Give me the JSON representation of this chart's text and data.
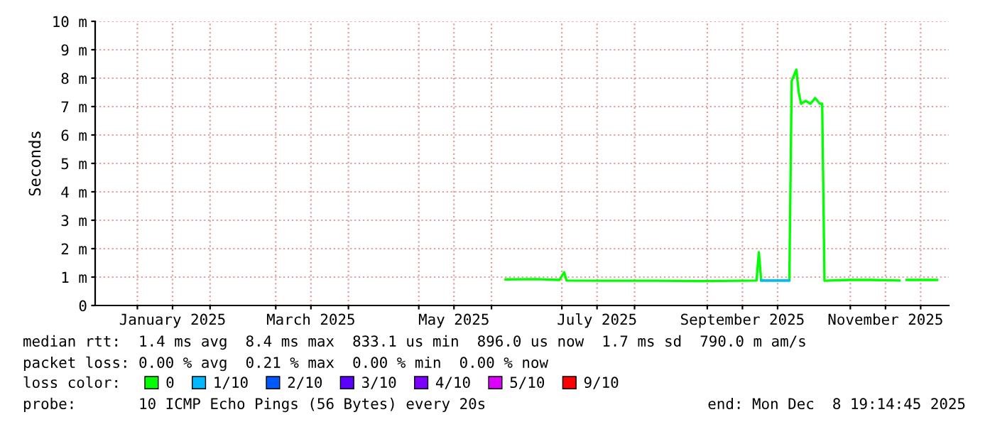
{
  "chart_data": {
    "type": "line",
    "ylabel": "Seconds",
    "xlim": [
      "2024-12-14",
      "2025-12-13"
    ],
    "xticks": [
      {
        "value": "2025-01-01",
        "label": null
      },
      {
        "value": "2025-01-16",
        "label": "January 2025"
      },
      {
        "value": "2025-02-01",
        "label": null
      },
      {
        "value": "2025-03-01",
        "label": null
      },
      {
        "value": "2025-03-16",
        "label": "March 2025"
      },
      {
        "value": "2025-04-01",
        "label": null
      },
      {
        "value": "2025-05-01",
        "label": null
      },
      {
        "value": "2025-05-16",
        "label": "May 2025"
      },
      {
        "value": "2025-06-01",
        "label": null
      },
      {
        "value": "2025-07-01",
        "label": null
      },
      {
        "value": "2025-07-16",
        "label": "July 2025"
      },
      {
        "value": "2025-08-01",
        "label": null
      },
      {
        "value": "2025-09-01",
        "label": null
      },
      {
        "value": "2025-09-16",
        "label": "September 2025"
      },
      {
        "value": "2025-10-01",
        "label": null
      },
      {
        "value": "2025-11-01",
        "label": null
      },
      {
        "value": "2025-11-16",
        "label": "November 2025"
      },
      {
        "value": "2025-12-01",
        "label": null
      }
    ],
    "ylim": [
      0,
      10
    ],
    "yticks": [
      0,
      {
        "value": 1,
        "label": "1 m"
      },
      {
        "value": 2,
        "label": "2 m"
      },
      {
        "value": 3,
        "label": "3 m"
      },
      {
        "value": 4,
        "label": "4 m"
      },
      {
        "value": 5,
        "label": "5 m"
      },
      {
        "value": 6,
        "label": "6 m"
      },
      {
        "value": 7,
        "label": "7 m"
      },
      {
        "value": 8,
        "label": "8 m"
      },
      {
        "value": 9,
        "label": "9 m"
      },
      {
        "value": 10,
        "label": "10 m"
      }
    ],
    "grid": true,
    "legend": "bottom",
    "legend_title": "loss color:",
    "series": [
      {
        "name": "0",
        "color": "#00ff00",
        "x": [
          "2025-06-07",
          "2025-06-20",
          "2025-06-30",
          "2025-07-02",
          "2025-07-03",
          "2025-07-20",
          "2025-08-10",
          "2025-08-30",
          "2025-09-15",
          "2025-09-22",
          "2025-09-23",
          "2025-09-24",
          "2025-10-06",
          "2025-10-07",
          "2025-10-08",
          "2025-10-09",
          "2025-10-10",
          "2025-10-11",
          "2025-10-13",
          "2025-10-15",
          "2025-10-17",
          "2025-10-19",
          "2025-10-20",
          "2025-10-21",
          "2025-11-01",
          "2025-11-10",
          "2025-11-22",
          "2025-11-23",
          "2025-11-25",
          "2025-12-08"
        ],
        "values": [
          0.92,
          0.93,
          0.9,
          1.17,
          0.88,
          0.87,
          0.87,
          0.86,
          0.87,
          0.88,
          1.88,
          0.88,
          0.88,
          7.9,
          8.1,
          8.3,
          7.5,
          7.1,
          7.2,
          7.1,
          7.3,
          7.1,
          7.1,
          0.87,
          0.9,
          0.9,
          0.88,
          null,
          0.9,
          0.9
        ]
      },
      {
        "name": "1/10",
        "color": "#00b8ff",
        "x": [
          "2025-09-24",
          "2025-10-06"
        ],
        "values": [
          0.88,
          0.88
        ]
      },
      {
        "name": "2/10",
        "color": "#0059ff"
      },
      {
        "name": "3/10",
        "color": "#5e00ff"
      },
      {
        "name": "4/10",
        "color": "#7e00ff"
      },
      {
        "name": "5/10",
        "color": "#dd00ff"
      },
      {
        "name": "9/10",
        "color": "#ff0000"
      }
    ],
    "annotations": [
      "median rtt:  1.4 ms avg  8.4 ms max  833.1 us min  896.0 us now  1.7 ms sd  790.0 m am/s",
      "packet loss: 0.00 % avg  0.21 % max  0.00 % min  0.00 % now",
      "probe:       10 ICMP Echo Pings (56 Bytes) every 20s",
      "end: Mon Dec  8 19:14:45 2025"
    ]
  }
}
